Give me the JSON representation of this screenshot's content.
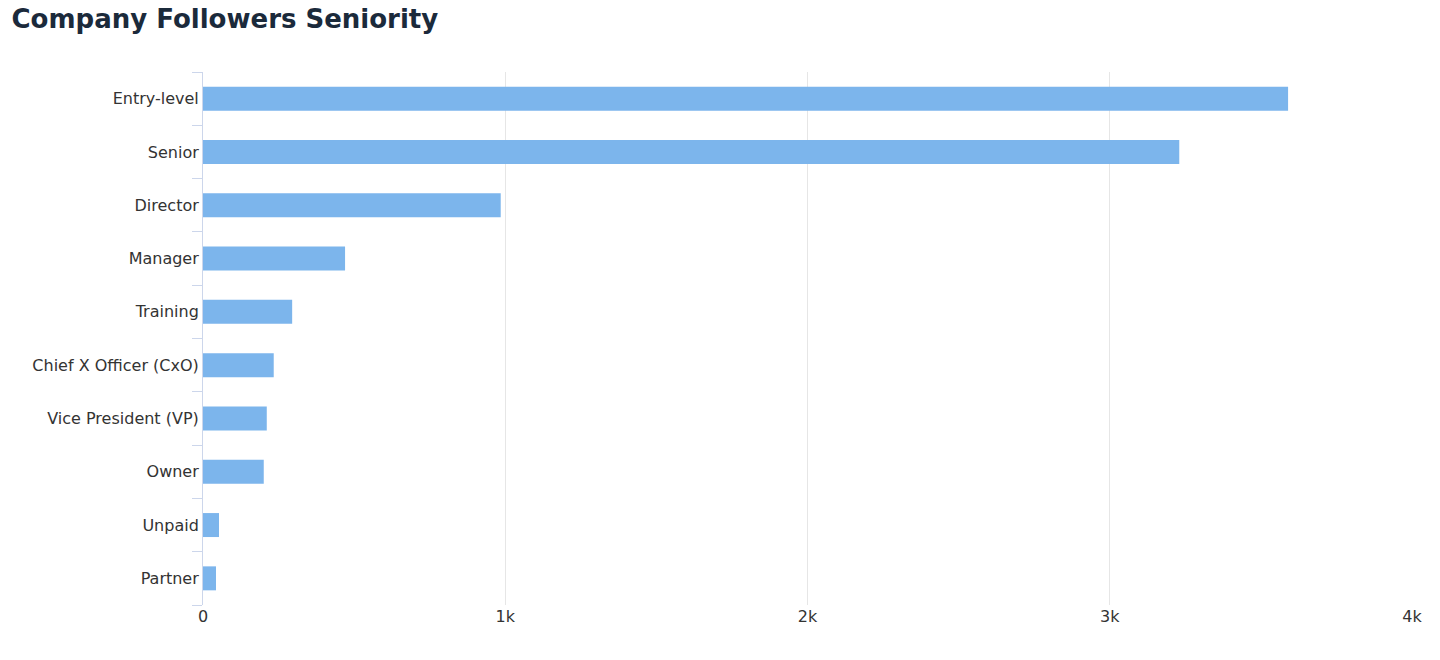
{
  "chart_data": {
    "type": "bar",
    "orientation": "horizontal",
    "title": "Company Followers Seniority",
    "categories": [
      "Entry-level",
      "Senior",
      "Director",
      "Manager",
      "Training",
      "Chief X Officer (CxO)",
      "Vice President (VP)",
      "Owner",
      "Unpaid",
      "Partner"
    ],
    "values": [
      3590,
      3230,
      985,
      470,
      295,
      234,
      211,
      201,
      53,
      43
    ],
    "color": "#7cb5ec",
    "xlim": [
      0,
      4000
    ],
    "xticks": [
      0,
      {
        "value": 1000,
        "label": "1k"
      },
      {
        "value": 2000,
        "label": "2k"
      },
      {
        "value": 3000,
        "label": "3k"
      },
      {
        "value": 4000,
        "label": "4k"
      }
    ],
    "grid": true
  }
}
